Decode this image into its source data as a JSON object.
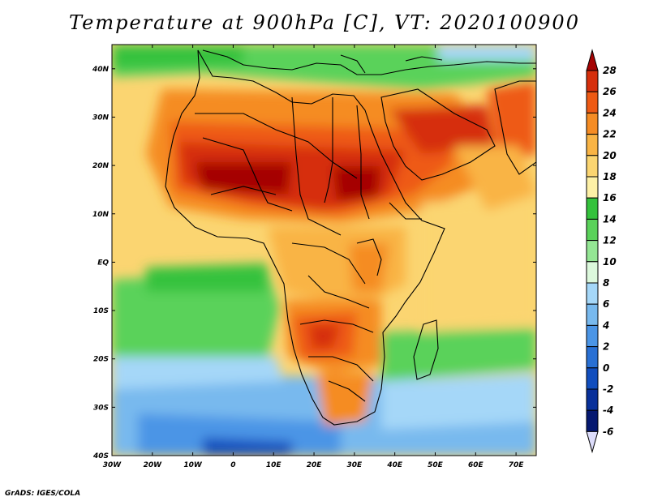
{
  "title": "Temperature at 900hPa [C], VT: 2020100900",
  "credit": "GrADS: IGES/COLA",
  "map": {
    "lat_labels": [
      "40N",
      "30N",
      "20N",
      "10N",
      "EQ",
      "10S",
      "20S",
      "30S",
      "40S"
    ],
    "lon_labels": [
      "30W",
      "20W",
      "10W",
      "0",
      "10E",
      "20E",
      "30E",
      "40E",
      "50E",
      "60E",
      "70E"
    ],
    "lat_range": [
      -40,
      45
    ],
    "lon_range": [
      -30,
      75
    ]
  },
  "colorbar": {
    "labels": [
      "28",
      "26",
      "24",
      "22",
      "20",
      "18",
      "16",
      "14",
      "12",
      "10",
      "8",
      "6",
      "4",
      "2",
      "0",
      "-2",
      "-4",
      "-6"
    ],
    "colors": [
      "#a50303",
      "#d62f0c",
      "#ee5a14",
      "#f58c24",
      "#f9b445",
      "#fbd571",
      "#fdf0a6",
      "#34c23c",
      "#5ad25a",
      "#94e694",
      "#dcf8dc",
      "#a5d7f8",
      "#78b9ee",
      "#4b95e6",
      "#2970d4",
      "#114ebe",
      "#08309a",
      "#051870"
    ]
  }
}
